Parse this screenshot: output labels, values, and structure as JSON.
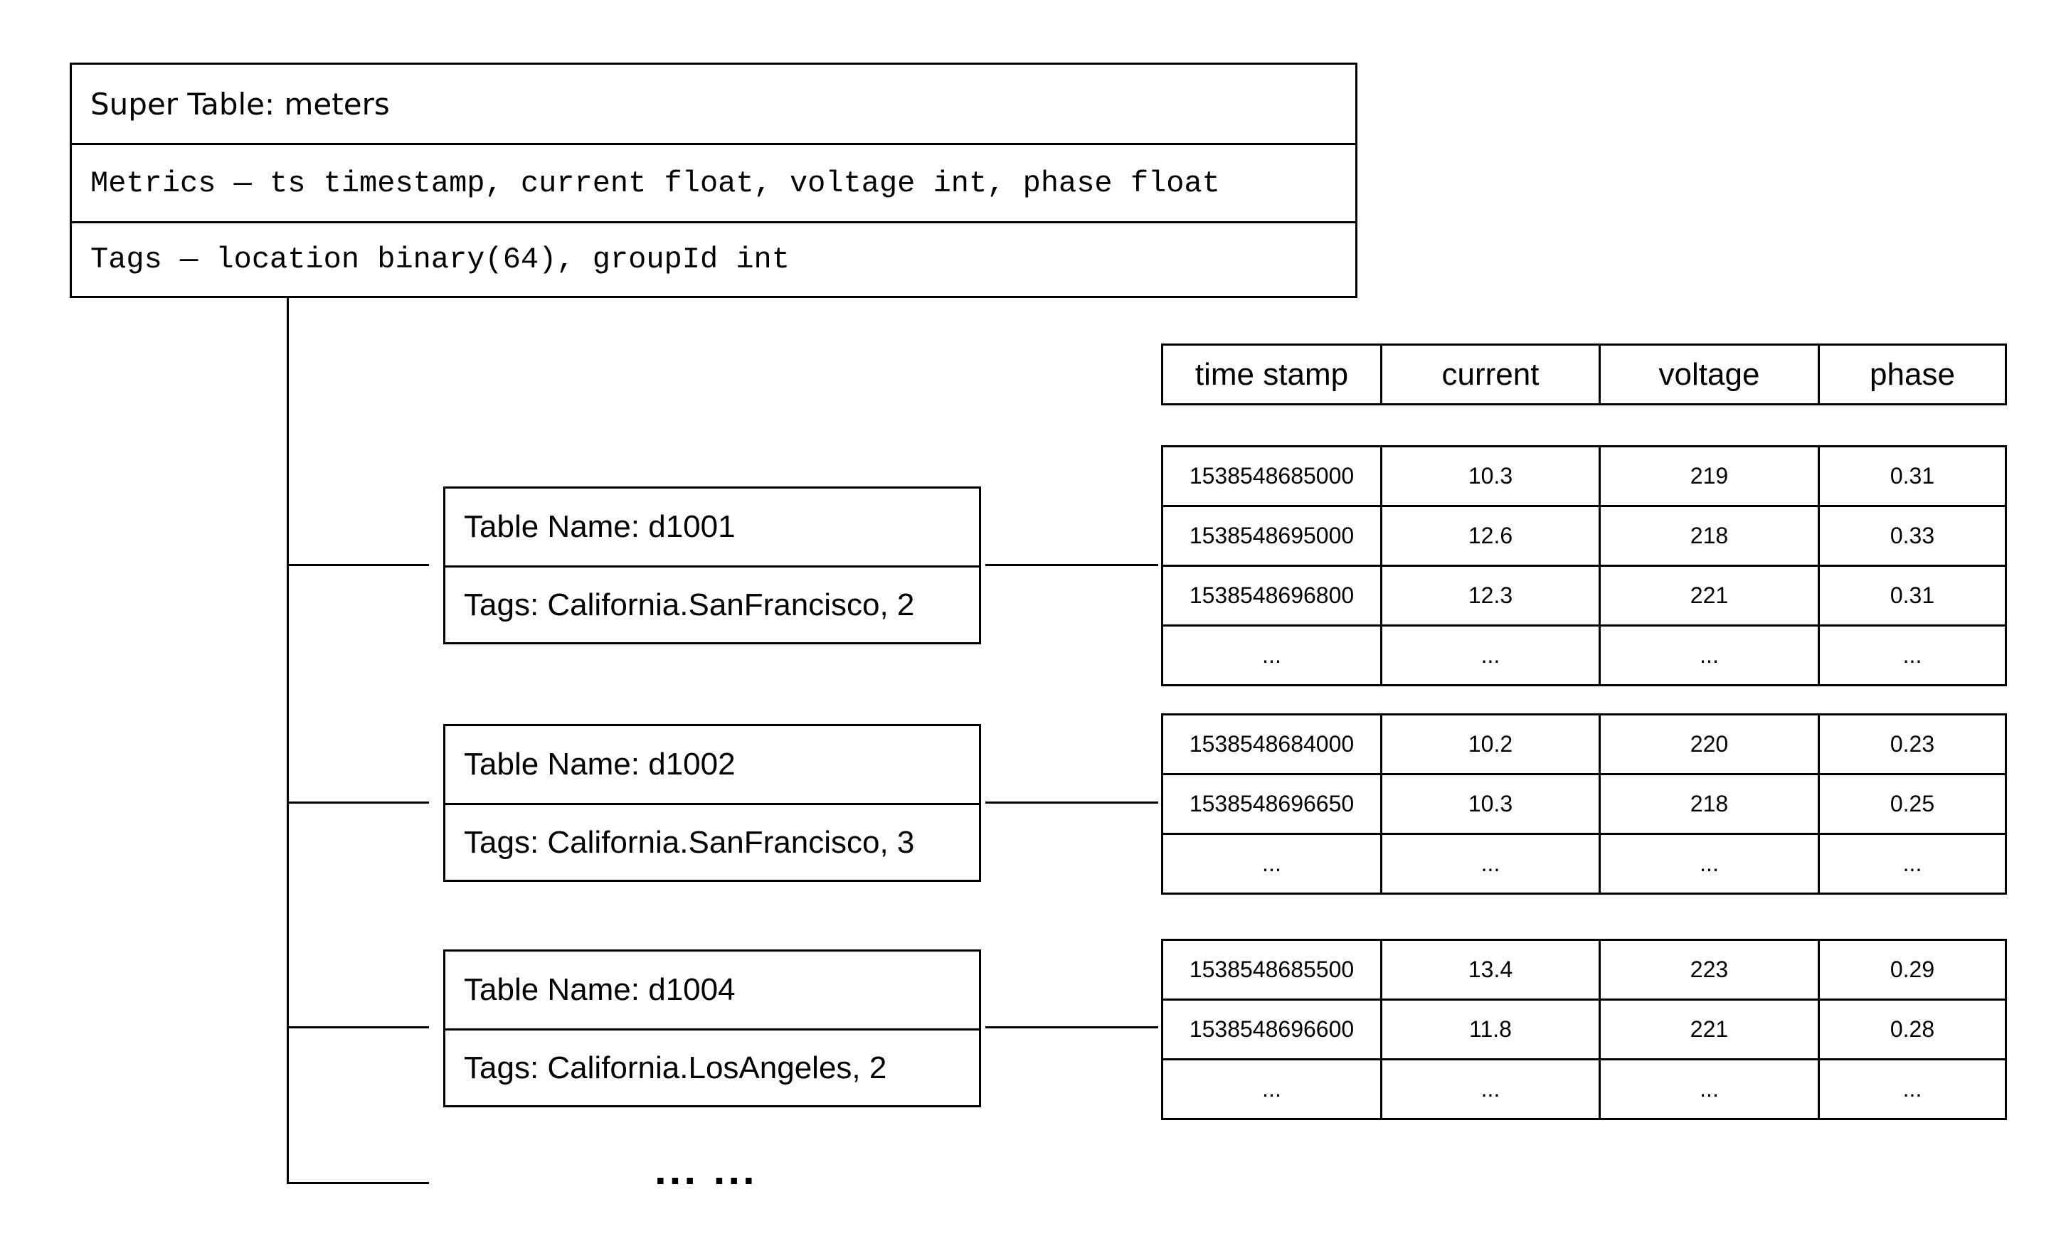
{
  "super_table": {
    "title": "Super Table: meters",
    "metrics": "Metrics — ts timestamp, current float, voltage int, phase float",
    "tags": "Tags — location binary(64), groupId int"
  },
  "columns": [
    "time stamp",
    "current",
    "voltage",
    "phase"
  ],
  "subtables": [
    {
      "name": "Table Name: d1001",
      "tags": "Tags: California.SanFrancisco, 2",
      "rows": [
        [
          "1538548685000",
          "10.3",
          "219",
          "0.31"
        ],
        [
          "1538548695000",
          "12.6",
          "218",
          "0.33"
        ],
        [
          "1538548696800",
          "12.3",
          "221",
          "0.31"
        ],
        [
          "...",
          "...",
          "...",
          "..."
        ]
      ]
    },
    {
      "name": "Table Name: d1002",
      "tags": "Tags: California.SanFrancisco, 3",
      "rows": [
        [
          "1538548684000",
          "10.2",
          "220",
          "0.23"
        ],
        [
          "1538548696650",
          "10.3",
          "218",
          "0.25"
        ],
        [
          "...",
          "...",
          "...",
          "..."
        ]
      ]
    },
    {
      "name": "Table Name: d1004",
      "tags": "Tags: California.LosAngeles, 2",
      "rows": [
        [
          "1538548685500",
          "13.4",
          "223",
          "0.29"
        ],
        [
          "1538548696600",
          "11.8",
          "221",
          "0.28"
        ],
        [
          "...",
          "...",
          "...",
          "..."
        ]
      ]
    }
  ],
  "more_label": "... ..."
}
